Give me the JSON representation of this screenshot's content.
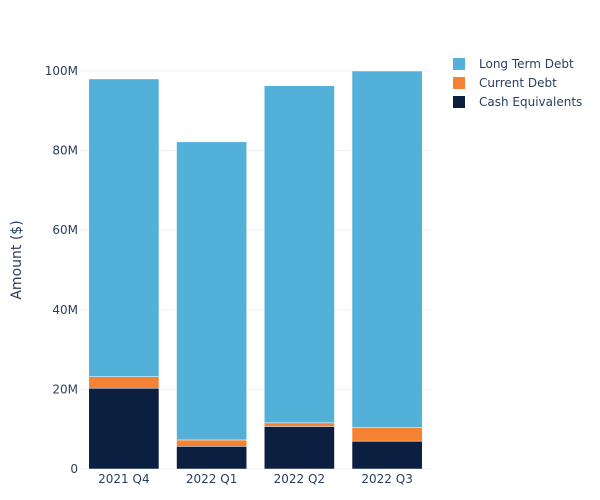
{
  "chart_data": {
    "type": "bar",
    "stacked": true,
    "title": "",
    "xlabel": "",
    "ylabel": "Amount ($)",
    "categories": [
      "2021 Q4",
      "2022 Q1",
      "2022 Q2",
      "2022 Q3"
    ],
    "ylim": [
      0,
      100000000
    ],
    "yticks": [
      0,
      20000000,
      40000000,
      60000000,
      80000000,
      100000000
    ],
    "ytick_labels": [
      "0",
      "20M",
      "40M",
      "60M",
      "80M",
      "100M"
    ],
    "grid": true,
    "legend_position": "top-right",
    "series": [
      {
        "name": "Cash Equivalents",
        "color": "#0d1f40",
        "values": [
          20300000,
          5700000,
          10700000,
          7000000
        ]
      },
      {
        "name": "Current Debt",
        "color": "#f58233",
        "values": [
          2900000,
          1600000,
          900000,
          3400000
        ]
      },
      {
        "name": "Long Term Debt",
        "color": "#52b0d9",
        "values": [
          74800000,
          74900000,
          84700000,
          89600000
        ]
      }
    ],
    "legend_order": [
      "Long Term Debt",
      "Current Debt",
      "Cash Equivalents"
    ]
  }
}
